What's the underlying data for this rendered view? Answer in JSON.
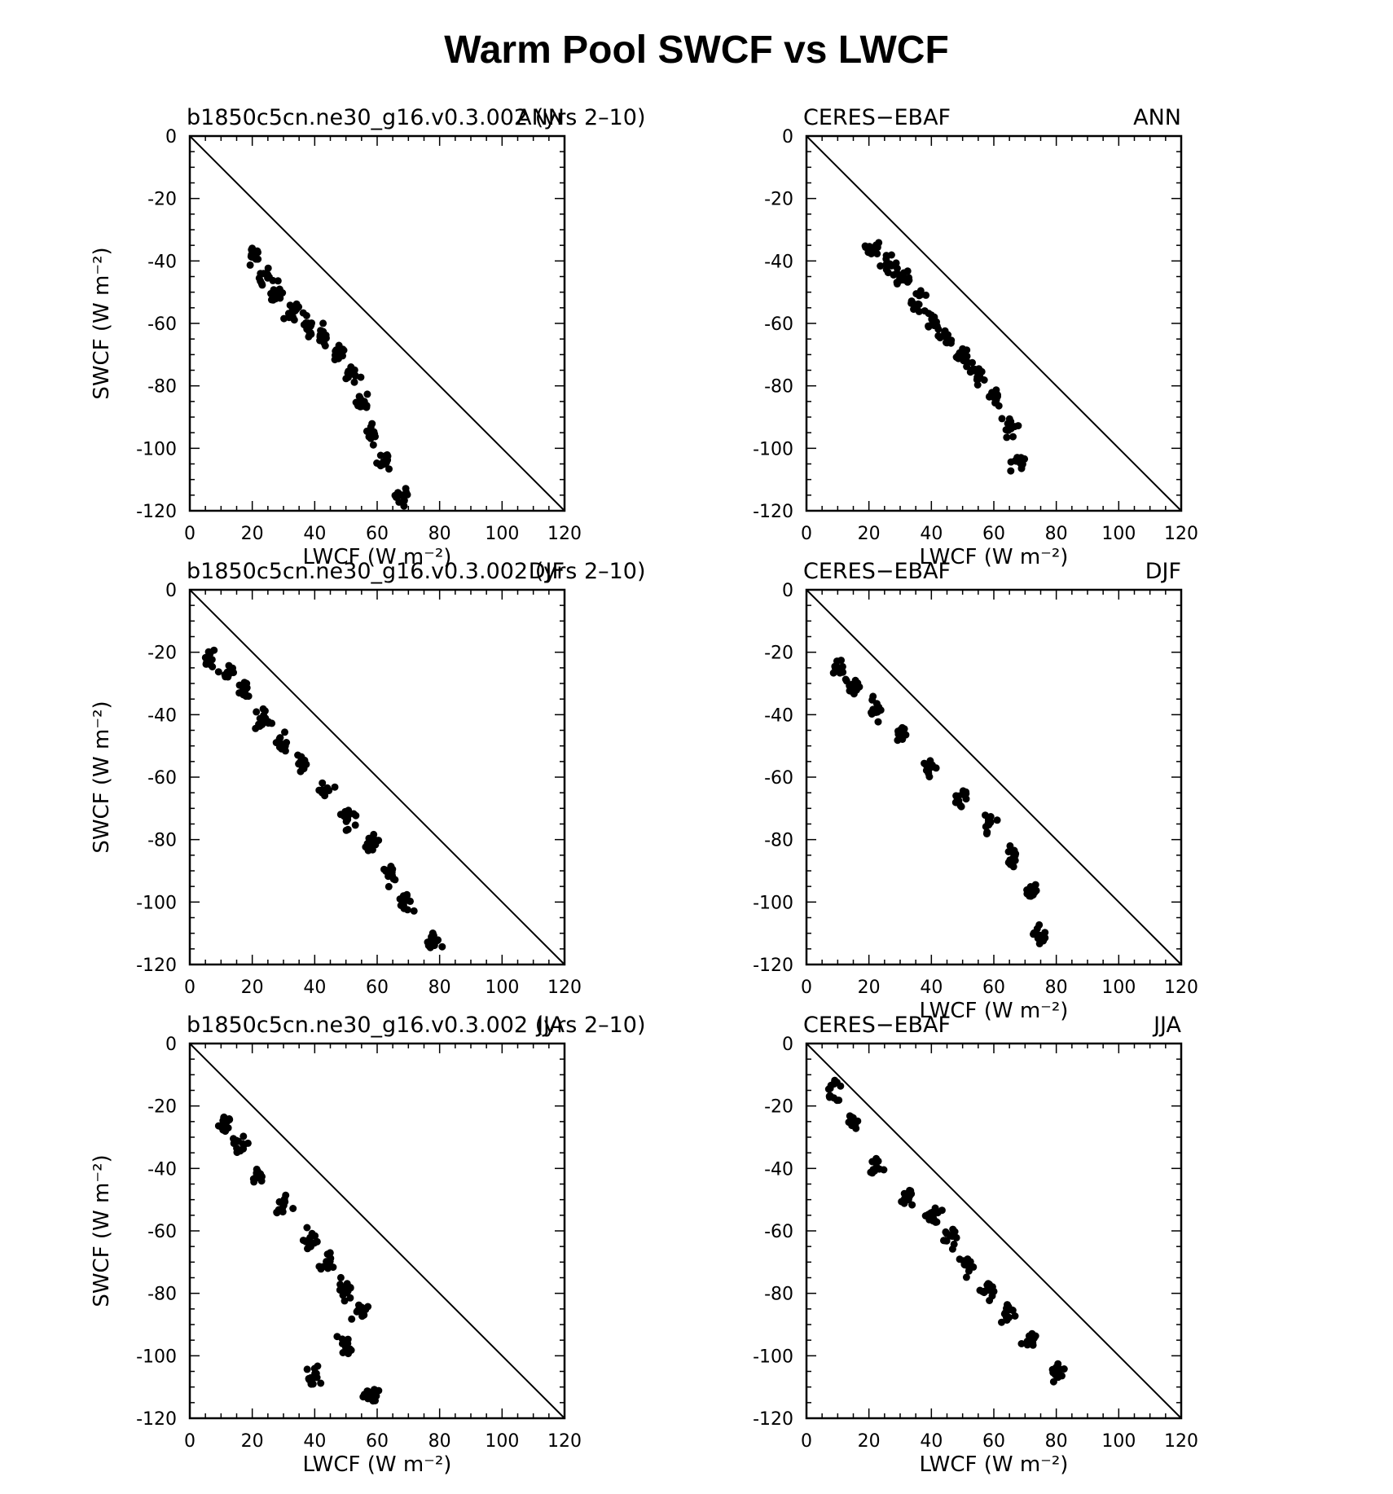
{
  "title": "Warm Pool SWCF vs LWCF",
  "chart_data": [
    {
      "type": "scatter",
      "left_label": "b1850c5cn.ne30_g16.v0.3.002 (yrs 2–10)",
      "right_label": "ANN",
      "ylabel": "SWCF (W m⁻²)",
      "xlabel": "LWCF (W m⁻²)",
      "xlim": [
        0,
        120
      ],
      "ylim": [
        -120,
        0
      ],
      "xticks": [
        "0",
        "20",
        "40",
        "60",
        "80",
        "100",
        "120"
      ],
      "yticks": [
        "0",
        "-20",
        "-40",
        "-60",
        "-80",
        "-100",
        "-120"
      ],
      "reference_line": "1:1",
      "clusters": [
        [
          20,
          -38
        ],
        [
          24,
          -44
        ],
        [
          28,
          -50
        ],
        [
          33,
          -55
        ],
        [
          38,
          -60
        ],
        [
          43,
          -64
        ],
        [
          48,
          -68
        ],
        [
          52,
          -75
        ],
        [
          55,
          -84
        ],
        [
          58,
          -95
        ],
        [
          62,
          -104
        ],
        [
          68,
          -115
        ]
      ]
    },
    {
      "type": "scatter",
      "left_label": "CERES−EBAF",
      "right_label": "ANN",
      "ylabel": "",
      "xlabel": "LWCF (W m⁻²)",
      "xlim": [
        0,
        120
      ],
      "ylim": [
        -120,
        0
      ],
      "xticks": [
        "0",
        "20",
        "40",
        "60",
        "80",
        "100",
        "120"
      ],
      "yticks": [
        "0",
        "-20",
        "-40",
        "-60",
        "-80",
        "-100",
        "-120"
      ],
      "reference_line": "1:1",
      "clusters": [
        [
          21,
          -35
        ],
        [
          26,
          -40
        ],
        [
          31,
          -45
        ],
        [
          36,
          -52
        ],
        [
          40,
          -58
        ],
        [
          45,
          -64
        ],
        [
          50,
          -70
        ],
        [
          55,
          -76
        ],
        [
          60,
          -83
        ],
        [
          65,
          -92
        ],
        [
          68,
          -104
        ]
      ]
    },
    {
      "type": "scatter",
      "left_label": "b1850c5cn.ne30_g16.v0.3.002 (yrs 2–10)",
      "right_label": "DJF",
      "ylabel": "SWCF (W m⁻²)",
      "xlabel": "",
      "xlim": [
        0,
        120
      ],
      "ylim": [
        -120,
        0
      ],
      "xticks": [
        "0",
        "20",
        "40",
        "60",
        "80",
        "100",
        "120"
      ],
      "yticks": [
        "0",
        "-20",
        "-40",
        "-60",
        "-80",
        "-100",
        "-120"
      ],
      "reference_line": "1:1",
      "clusters": [
        [
          6,
          -22
        ],
        [
          12,
          -26
        ],
        [
          18,
          -32
        ],
        [
          24,
          -40
        ],
        [
          30,
          -48
        ],
        [
          36,
          -55
        ],
        [
          43,
          -64
        ],
        [
          50,
          -72
        ],
        [
          58,
          -80
        ],
        [
          64,
          -90
        ],
        [
          70,
          -100
        ],
        [
          78,
          -112
        ]
      ]
    },
    {
      "type": "scatter",
      "left_label": "CERES−EBAF",
      "right_label": "DJF",
      "ylabel": "",
      "xlabel": "LWCF (W m⁻²)",
      "xlim": [
        0,
        120
      ],
      "ylim": [
        -120,
        0
      ],
      "xticks": [
        "0",
        "20",
        "40",
        "60",
        "80",
        "100",
        "120"
      ],
      "yticks": [
        "0",
        "-20",
        "-40",
        "-60",
        "-80",
        "-100",
        "-120"
      ],
      "reference_line": "1:1",
      "clusters": [
        [
          10,
          -24
        ],
        [
          15,
          -30
        ],
        [
          22,
          -38
        ],
        [
          30,
          -45
        ],
        [
          40,
          -56
        ],
        [
          50,
          -66
        ],
        [
          58,
          -74
        ],
        [
          66,
          -84
        ],
        [
          72,
          -96
        ],
        [
          75,
          -110
        ]
      ]
    },
    {
      "type": "scatter",
      "left_label": "b1850c5cn.ne30_g16.v0.3.002 (yrs 2–10)",
      "right_label": "JJA",
      "ylabel": "SWCF (W m⁻²)",
      "xlabel": "LWCF (W m⁻²)",
      "xlim": [
        0,
        120
      ],
      "ylim": [
        -120,
        0
      ],
      "xticks": [
        "0",
        "20",
        "40",
        "60",
        "80",
        "100",
        "120"
      ],
      "yticks": [
        "0",
        "-20",
        "-40",
        "-60",
        "-80",
        "-100",
        "-120"
      ],
      "reference_line": "1:1",
      "clusters": [
        [
          11,
          -25
        ],
        [
          16,
          -32
        ],
        [
          22,
          -42
        ],
        [
          30,
          -52
        ],
        [
          38,
          -62
        ],
        [
          44,
          -70
        ],
        [
          50,
          -78
        ],
        [
          55,
          -86
        ],
        [
          50,
          -96
        ],
        [
          40,
          -106
        ],
        [
          58,
          -112
        ]
      ]
    },
    {
      "type": "scatter",
      "left_label": "CERES−EBAF",
      "right_label": "JJA",
      "ylabel": "",
      "xlabel": "LWCF (W m⁻²)",
      "xlim": [
        0,
        120
      ],
      "ylim": [
        -120,
        0
      ],
      "xticks": [
        "0",
        "20",
        "40",
        "60",
        "80",
        "100",
        "120"
      ],
      "yticks": [
        "0",
        "-20",
        "-40",
        "-60",
        "-80",
        "-100",
        "-120"
      ],
      "reference_line": "1:1",
      "clusters": [
        [
          9,
          -14
        ],
        [
          15,
          -25
        ],
        [
          22,
          -38
        ],
        [
          32,
          -48
        ],
        [
          40,
          -54
        ],
        [
          46,
          -62
        ],
        [
          52,
          -70
        ],
        [
          58,
          -78
        ],
        [
          65,
          -86
        ],
        [
          72,
          -94
        ],
        [
          80,
          -104
        ]
      ]
    }
  ]
}
